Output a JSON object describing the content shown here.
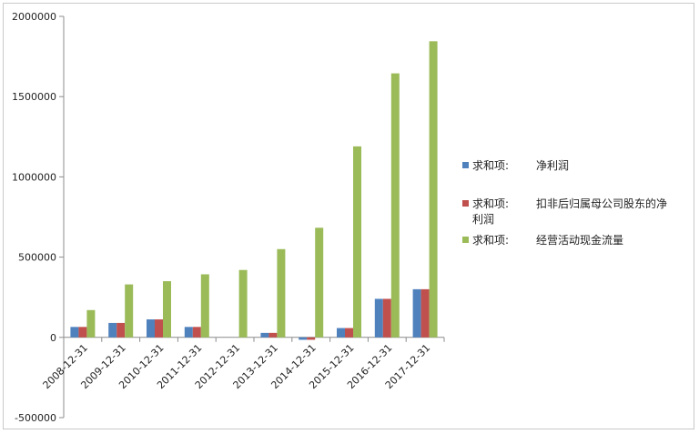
{
  "chart_data": {
    "type": "bar",
    "categories": [
      "2008-12-31",
      "2009-12-31",
      "2010-12-31",
      "2011-12-31",
      "2012-12-31",
      "2013-12-31",
      "2014-12-31",
      "2015-12-31",
      "2016-12-31",
      "2017-12-31"
    ],
    "series": [
      {
        "name": "求和项:　　净利润",
        "color": "#4f81bd",
        "values": [
          65000,
          90000,
          112000,
          65000,
          0,
          28000,
          -15000,
          58000,
          240000,
          300000
        ]
      },
      {
        "name": "求和项:　　扣非后归属母公司股东的净利润",
        "color": "#c0504d",
        "values": [
          65000,
          90000,
          112000,
          65000,
          0,
          28000,
          -15000,
          58000,
          240000,
          300000
        ]
      },
      {
        "name": "求和项:　　经营活动现金流量",
        "color": "#9bbb59",
        "values": [
          170000,
          330000,
          350000,
          393000,
          420000,
          550000,
          683000,
          1190000,
          1645000,
          1845000
        ]
      }
    ],
    "yticks": [
      "2000000",
      "1500000",
      "1000000",
      "500000",
      "0",
      "-500000"
    ],
    "ylim": [
      -500000,
      2000000
    ],
    "grid": false,
    "legend_position": "right",
    "legend_lines": [
      {
        "prefix": "求和项:",
        "text": "净利润",
        "cont": ""
      },
      {
        "prefix": "求和项:",
        "text": "扣非后归属母公司股东的净",
        "cont": "利润"
      },
      {
        "prefix": "求和项:",
        "text": "经营活动现金流量",
        "cont": ""
      }
    ]
  }
}
